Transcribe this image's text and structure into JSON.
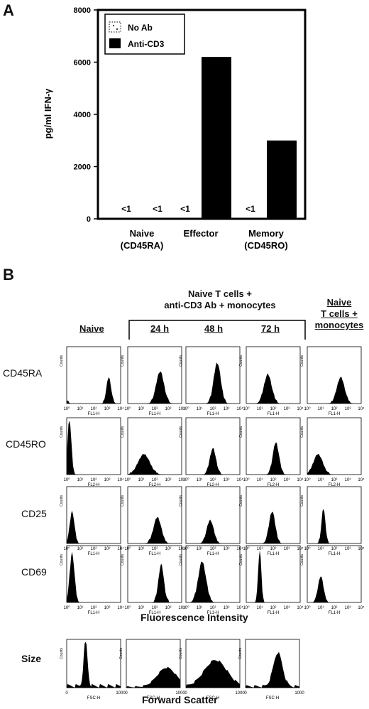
{
  "panel_a": {
    "panel_letter": "A",
    "legend": [
      {
        "label": "No Ab",
        "swatch": "dotted"
      },
      {
        "label": "Anti-CD3",
        "swatch": "solid"
      }
    ],
    "less_than_label": "<1"
  },
  "chart_data": {
    "type": "bar",
    "title": "",
    "ylabel": "pg/ml IFN-γ",
    "xlabel": "",
    "ylim": [
      0,
      8000
    ],
    "yticks": [
      "0",
      "2000",
      "4000",
      "6000",
      "8000"
    ],
    "categories": [
      {
        "line1": "Naive",
        "line2": "(CD45RA)"
      },
      {
        "line1": "Effector",
        "line2": ""
      },
      {
        "line1": "Memory",
        "line2": "(CD45RO)"
      }
    ],
    "series": [
      {
        "name": "No Ab",
        "values": [
          "<1",
          "<1",
          "<1"
        ]
      },
      {
        "name": "Anti-CD3",
        "values": [
          "<1",
          6200,
          3000
        ]
      }
    ],
    "legend_position": "top-left",
    "grid": false
  },
  "panel_b": {
    "panel_letter": "B",
    "header_group": "Naive T cells +\nanti-CD3 Ab + monocytes",
    "columns": [
      "Naive",
      "24 h",
      "48 h",
      "72 h"
    ],
    "last_column": "Naive\nT cells +\nmonocytes",
    "rows": [
      {
        "label": "CD45RA",
        "channel": "FL1-H"
      },
      {
        "label": "CD45RO",
        "channel": "FL2-H"
      },
      {
        "label": "CD25",
        "channel": "FL1-H"
      },
      {
        "label": "CD69",
        "channel": "FL1-H"
      }
    ],
    "counts_label": "Counts",
    "fluorescence_label": "Fluorescence Intensity",
    "size_row": {
      "label": "Size",
      "channel": "FSC-H",
      "xtick_end": "1000",
      "xtick_start": "0"
    },
    "forward_scatter_label": "Forward Scatter",
    "log_ticks": [
      "10⁰",
      "10¹",
      "10²",
      "10³",
      "10⁴"
    ]
  }
}
